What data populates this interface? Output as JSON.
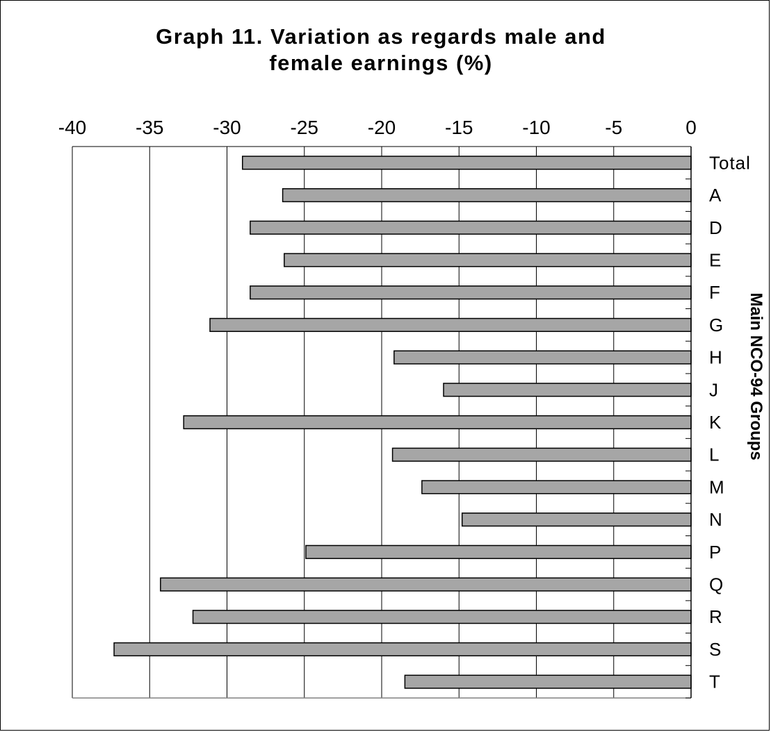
{
  "chart_data": {
    "type": "bar",
    "orientation": "horizontal",
    "title_lines": [
      "Graph 11. Variation as regards male and",
      "female earnings (%)"
    ],
    "xlabel": "",
    "ylabel": "Main NCO-94 Groups",
    "xlim": [
      -40,
      0
    ],
    "xticks": [
      -40,
      -35,
      -30,
      -25,
      -20,
      -15,
      -10,
      -5,
      0
    ],
    "xtick_labels": [
      "-40",
      "-35",
      "-30",
      "-25",
      "-20",
      "-15",
      "-10",
      "-5",
      "0"
    ],
    "x_axis_position": "top",
    "category_axis_position": "right",
    "grid": true,
    "legend": "none",
    "bar_color": "#a6a6a6",
    "categories": [
      "Total",
      "A",
      "D",
      "E",
      "F",
      "G",
      "H",
      "J",
      "K",
      "L",
      "M",
      "N",
      "P",
      "Q",
      "R",
      "S",
      "T"
    ],
    "values": [
      -29.0,
      -26.4,
      -28.5,
      -26.3,
      -28.5,
      -31.1,
      -19.2,
      -16.0,
      -32.8,
      -19.3,
      -17.4,
      -14.8,
      -24.9,
      -34.3,
      -32.2,
      -37.3,
      -18.5
    ]
  }
}
